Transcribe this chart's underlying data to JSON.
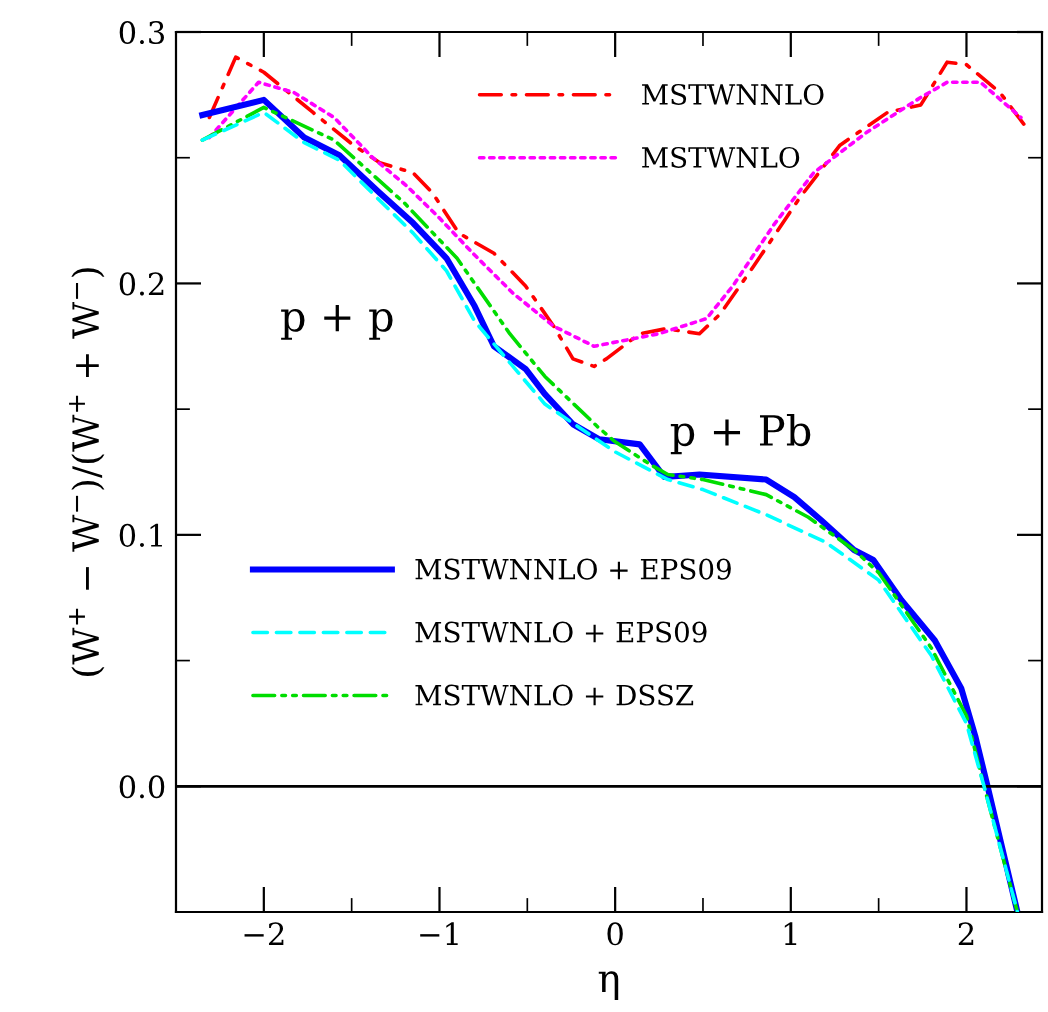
{
  "chart_data": {
    "type": "line",
    "xlabel": "η",
    "ylabel": "(W$^{+}$ − W$^{−}$)/(W$^{+}$ + W$^{−}$)",
    "xlim": [
      -2.5,
      2.43
    ],
    "ylim": [
      -0.05,
      0.3
    ],
    "xticks": [
      -2,
      -1,
      0,
      1,
      2
    ],
    "yticks": [
      {
        "value": 0,
        "label": "0.0"
      },
      0.1,
      0.2,
      0.3
    ],
    "grid": false,
    "legend": "top",
    "marker": "none",
    "annotations": [
      "p + p",
      "p + Pb"
    ],
    "ref_lines": [
      {
        "axis": "y",
        "value": 0,
        "color": "#000000",
        "line_style": "solid"
      }
    ],
    "series": [
      {
        "name": "MSTWNNLO",
        "color": "#ff0000",
        "line_style": "dashdot",
        "x": [
          -2.31,
          -2.16,
          -2.0,
          -1.72,
          -1.49,
          -1.34,
          -1.15,
          -1.04,
          -0.89,
          -0.69,
          -0.51,
          -0.35,
          -0.24,
          -0.12,
          -0.05,
          0.14,
          0.29,
          0.48,
          0.6,
          0.79,
          1.05,
          1.28,
          1.55,
          1.74,
          1.89,
          2.0,
          2.19,
          2.33
        ],
        "values": [
          0.266,
          0.29,
          0.284,
          0.268,
          0.255,
          0.248,
          0.244,
          0.236,
          0.22,
          0.212,
          0.199,
          0.183,
          0.17,
          0.167,
          0.17,
          0.18,
          0.182,
          0.18,
          0.188,
          0.207,
          0.234,
          0.255,
          0.268,
          0.271,
          0.288,
          0.287,
          0.276,
          0.263
        ]
      },
      {
        "name": "MSTWNLO",
        "color": "#ff00ff",
        "line_style": "dotted",
        "x": [
          -2.31,
          -2.03,
          -1.83,
          -1.6,
          -1.38,
          -1.19,
          -1.0,
          -0.81,
          -0.58,
          -0.35,
          -0.12,
          0.25,
          0.52,
          0.67,
          0.9,
          1.13,
          1.43,
          1.74,
          1.89,
          2.08,
          2.31
        ],
        "values": [
          0.258,
          0.28,
          0.276,
          0.266,
          0.25,
          0.239,
          0.226,
          0.212,
          0.196,
          0.183,
          0.175,
          0.18,
          0.186,
          0.199,
          0.223,
          0.244,
          0.26,
          0.274,
          0.28,
          0.28,
          0.266
        ]
      },
      {
        "name": "MSTWNNLO + EPS09",
        "color": "#0000ff",
        "line_style": "solid",
        "x": [
          -2.35,
          -2.0,
          -1.77,
          -1.57,
          -1.34,
          -1.15,
          -0.96,
          -0.8,
          -0.69,
          -0.51,
          -0.4,
          -0.24,
          -0.09,
          0.14,
          0.28,
          0.48,
          0.86,
          1.02,
          1.17,
          1.36,
          1.47,
          1.63,
          1.82,
          1.97,
          2.05,
          2.12,
          2.29
        ],
        "values": [
          0.267,
          0.273,
          0.258,
          0.251,
          0.236,
          0.224,
          0.21,
          0.191,
          0.175,
          0.166,
          0.156,
          0.144,
          0.138,
          0.136,
          0.123,
          0.124,
          0.122,
          0.115,
          0.106,
          0.094,
          0.09,
          0.074,
          0.058,
          0.039,
          0.02,
          0.0,
          -0.05
        ]
      },
      {
        "name": "MSTWNLO + EPS09",
        "color": "#00ffff",
        "line_style": "dashed",
        "x": [
          -2.35,
          -2.0,
          -1.77,
          -1.57,
          -1.34,
          -1.15,
          -0.96,
          -0.8,
          -0.4,
          0.0,
          0.3,
          0.5,
          0.86,
          1.2,
          1.5,
          1.8,
          2.0,
          2.1,
          2.29
        ],
        "values": [
          0.257,
          0.268,
          0.256,
          0.249,
          0.233,
          0.22,
          0.205,
          0.185,
          0.152,
          0.133,
          0.122,
          0.118,
          0.108,
          0.097,
          0.082,
          0.052,
          0.025,
          0.0,
          -0.05
        ]
      },
      {
        "name": "MSTWNLO + DSSZ",
        "color": "#00dd00",
        "line_style": "dashdotdot",
        "x": [
          -2.35,
          -2.0,
          -1.6,
          -1.2,
          -0.9,
          -0.6,
          -0.4,
          -0.1,
          0.0,
          0.2,
          0.3,
          0.5,
          0.86,
          1.1,
          1.36,
          1.5,
          1.8,
          2.0,
          2.1,
          2.29
        ],
        "values": [
          0.257,
          0.27,
          0.257,
          0.232,
          0.21,
          0.18,
          0.163,
          0.143,
          0.137,
          0.128,
          0.124,
          0.122,
          0.116,
          0.107,
          0.094,
          0.085,
          0.055,
          0.028,
          0.0,
          -0.05
        ]
      }
    ]
  }
}
